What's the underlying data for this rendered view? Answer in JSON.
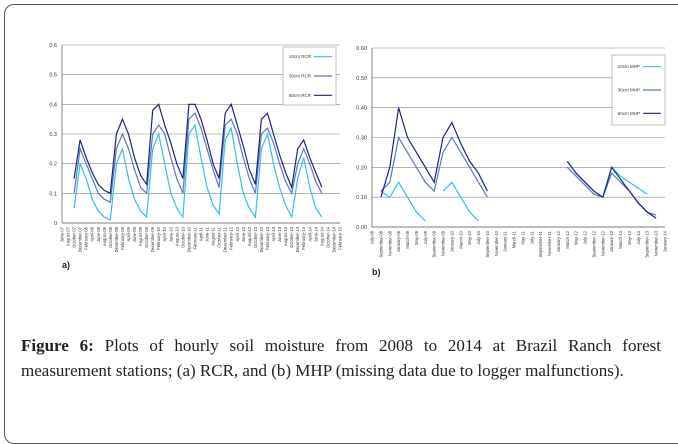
{
  "chart_data": [
    {
      "type": "line",
      "panel_label": "a)",
      "categories": [
        "June-07",
        "August-07",
        "October-07",
        "December-07",
        "February-08",
        "April-08",
        "June-08",
        "August-08",
        "October-08",
        "December-08",
        "February-09",
        "April-09",
        "June-09",
        "August-09",
        "October-09",
        "December-09",
        "February-10",
        "April-10",
        "June-10",
        "August-10",
        "October-10",
        "December-10",
        "February-11",
        "April-11",
        "June-11",
        "August-11",
        "October-11",
        "December-11",
        "February-12",
        "April-12",
        "June-12",
        "August-12",
        "October-12",
        "December-12",
        "February-13",
        "April-13",
        "June-13",
        "August-13",
        "October-13",
        "December-13",
        "February-14",
        "April-14",
        "June-14",
        "August-14",
        "October-14",
        "December-14",
        "February-15"
      ],
      "series": [
        {
          "name": "10cm RCR",
          "color": "#33c0ea",
          "values": [
            null,
            null,
            0.05,
            0.2,
            0.15,
            0.08,
            0.04,
            0.02,
            0.01,
            0.2,
            0.25,
            0.15,
            0.08,
            0.04,
            0.02,
            0.25,
            0.3,
            0.2,
            0.1,
            0.05,
            0.02,
            0.3,
            0.33,
            0.22,
            0.12,
            0.06,
            0.03,
            0.28,
            0.32,
            0.2,
            0.1,
            0.05,
            0.02,
            0.25,
            0.3,
            0.2,
            0.12,
            0.06,
            0.02,
            0.15,
            0.22,
            0.12,
            0.05,
            0.02,
            null,
            null,
            null
          ]
        },
        {
          "name": "30cm RCR",
          "color": "#5a78c8",
          "values": [
            null,
            null,
            0.1,
            0.25,
            0.2,
            0.15,
            0.1,
            0.08,
            0.07,
            0.25,
            0.3,
            0.25,
            0.18,
            0.12,
            0.1,
            0.3,
            0.33,
            0.3,
            0.22,
            0.15,
            0.1,
            0.35,
            0.37,
            0.32,
            0.25,
            0.18,
            0.12,
            0.33,
            0.35,
            0.3,
            0.22,
            0.15,
            0.1,
            0.3,
            0.32,
            0.27,
            0.2,
            0.14,
            0.1,
            0.2,
            0.25,
            0.2,
            0.14,
            0.1,
            null,
            null,
            null
          ]
        },
        {
          "name": "60cm RCR",
          "color": "#1c2580",
          "values": [
            null,
            null,
            0.15,
            0.28,
            0.22,
            0.17,
            0.13,
            0.11,
            0.1,
            0.3,
            0.35,
            0.3,
            0.22,
            0.16,
            0.13,
            0.38,
            0.4,
            0.33,
            0.27,
            0.2,
            0.15,
            0.4,
            0.4,
            0.35,
            0.28,
            0.2,
            0.15,
            0.37,
            0.4,
            0.33,
            0.26,
            0.18,
            0.13,
            0.35,
            0.37,
            0.3,
            0.23,
            0.17,
            0.12,
            0.25,
            0.28,
            0.22,
            0.17,
            0.12,
            null,
            null,
            null
          ]
        }
      ],
      "ylim": [
        0,
        0.6
      ],
      "yticks": [
        0,
        0.1,
        0.2,
        0.3,
        0.4,
        0.5,
        0.6
      ],
      "grid": true,
      "legend": "top-right"
    },
    {
      "type": "line",
      "panel_label": "b)",
      "categories": [
        "July-08",
        "September-08",
        "November-08",
        "January-09",
        "March-09",
        "May-09",
        "July-09",
        "September-09",
        "November-09",
        "January-10",
        "March-10",
        "May-10",
        "July-10",
        "September-10",
        "November-10",
        "January-11",
        "March-11",
        "May-11",
        "July-11",
        "September-11",
        "November-11",
        "January-12",
        "March-12",
        "May-12",
        "July-12",
        "September-12",
        "November-12",
        "January-13",
        "March-13",
        "May-13",
        "July-13",
        "September-13",
        "November-13",
        "January-14"
      ],
      "series": [
        {
          "name": "10cm MHP",
          "color": "#33c0ea",
          "values": [
            null,
            0.12,
            0.1,
            0.15,
            0.1,
            0.05,
            0.02,
            null,
            0.12,
            0.15,
            0.1,
            0.05,
            0.02,
            null,
            null,
            null,
            null,
            null,
            null,
            null,
            null,
            null,
            0.22,
            0.18,
            0.15,
            0.12,
            0.1,
            0.2,
            0.17,
            0.15,
            0.13,
            0.11,
            null,
            null
          ]
        },
        {
          "name": "30cm MHP",
          "color": "#5a78c8",
          "values": [
            null,
            0.12,
            0.15,
            0.3,
            0.25,
            0.2,
            0.15,
            0.12,
            0.25,
            0.3,
            0.25,
            0.2,
            0.15,
            0.1,
            null,
            null,
            null,
            null,
            null,
            null,
            null,
            null,
            0.2,
            0.17,
            0.14,
            0.11,
            0.1,
            0.18,
            0.15,
            0.12,
            0.08,
            0.05,
            0.04,
            null
          ]
        },
        {
          "name": "60cm MHP",
          "color": "#1c2580",
          "values": [
            null,
            0.1,
            0.2,
            0.4,
            0.3,
            0.25,
            0.2,
            0.15,
            0.3,
            0.35,
            0.28,
            0.22,
            0.18,
            0.12,
            null,
            null,
            null,
            null,
            null,
            null,
            null,
            null,
            0.22,
            0.18,
            0.15,
            0.12,
            0.1,
            0.2,
            0.16,
            0.12,
            0.08,
            0.05,
            0.03,
            null
          ]
        }
      ],
      "ylim": [
        0,
        0.6
      ],
      "yticks": [
        {
          "value": 0,
          "label": "0.00"
        },
        {
          "value": 0.1,
          "label": "0.10"
        },
        {
          "value": 0.2,
          "label": "0.20"
        },
        {
          "value": 0.3,
          "label": "0.30"
        },
        {
          "value": 0.4,
          "label": "0.40"
        },
        {
          "value": 0.5,
          "label": "0.50"
        },
        {
          "value": 0.6,
          "label": "0.60"
        }
      ],
      "grid": true,
      "legend": "top-right"
    }
  ],
  "caption": {
    "label": "Figure 6:",
    "text": "Plots of hourly soil moisture from 2008 to 2014 at Brazil Ranch forest measurement stations; (a) RCR, and (b) MHP (missing data due to logger malfunctions)."
  }
}
